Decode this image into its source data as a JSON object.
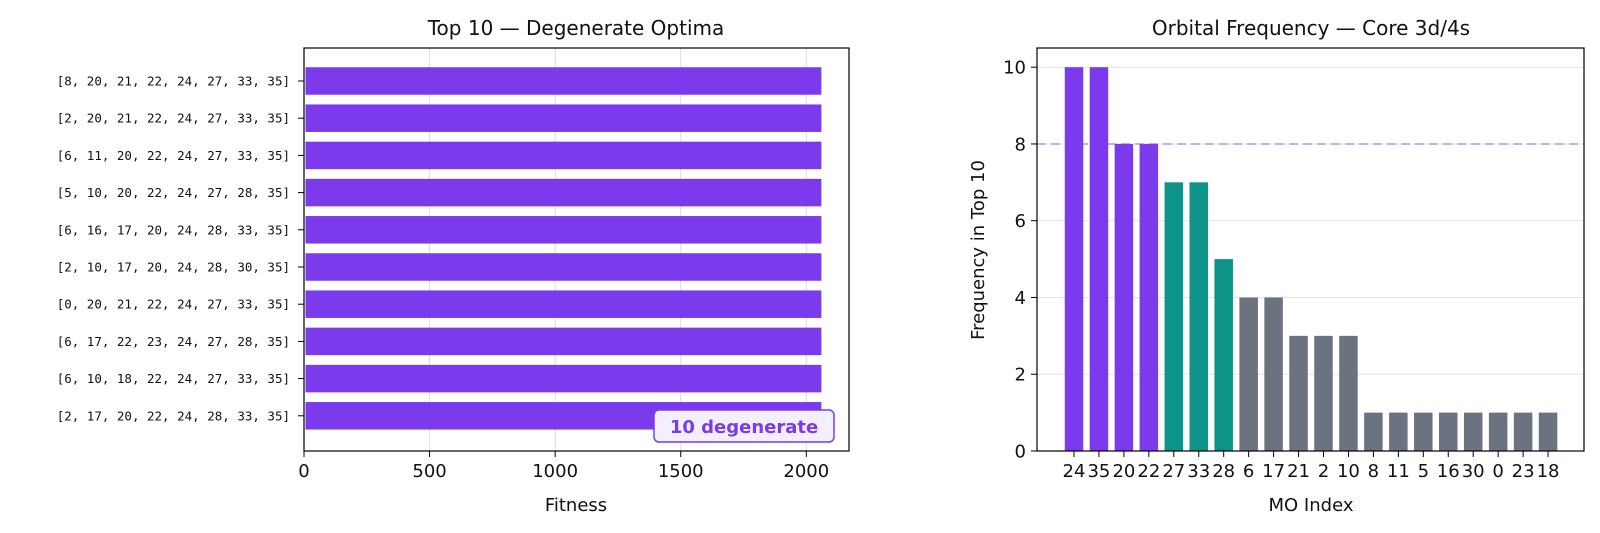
{
  "colors": {
    "purple": "#7c3aed",
    "teal": "#0d9488",
    "gray": "#6b7280",
    "dashed": "#c4b0f0",
    "badge_bg": "#f3efff"
  },
  "chart_data": [
    {
      "type": "bar",
      "orientation": "horizontal",
      "title": "Top 10 — Degenerate Optima",
      "xlabel": "Fitness",
      "ylabel": "",
      "categories": [
        "[8, 20, 21, 22, 24, 27, 33, 35]",
        "[2, 20, 21, 22, 24, 27, 33, 35]",
        "[6, 11, 20, 22, 24, 27, 33, 35]",
        "[5, 10, 20, 22, 24, 27, 28, 35]",
        "[6, 16, 17, 20, 24, 28, 33, 35]",
        "[2, 10, 17, 20, 24, 28, 30, 35]",
        "[0, 20, 21, 22, 24, 27, 33, 35]",
        "[6, 17, 22, 23, 24, 27, 28, 35]",
        "[6, 10, 18, 22, 24, 27, 33, 35]",
        "[2, 17, 20, 22, 24, 28, 33, 35]"
      ],
      "values": [
        2060,
        2060,
        2060,
        2060,
        2060,
        2060,
        2060,
        2060,
        2060,
        2060
      ],
      "xlim": [
        0,
        2170
      ],
      "xticks": [
        0,
        500,
        1000,
        1500,
        2000
      ],
      "grid": "vertical",
      "annotation": "10 degenerate"
    },
    {
      "type": "bar",
      "title": "Orbital Frequency — Core 3d/4s",
      "xlabel": "MO Index",
      "ylabel": "Frequency in Top 10",
      "categories": [
        "24",
        "35",
        "20",
        "22",
        "27",
        "33",
        "28",
        "6",
        "17",
        "21",
        "2",
        "10",
        "8",
        "11",
        "5",
        "16",
        "30",
        "0",
        "23",
        "18"
      ],
      "values": [
        10,
        10,
        8,
        8,
        7,
        7,
        5,
        4,
        4,
        3,
        3,
        3,
        1,
        1,
        1,
        1,
        1,
        1,
        1,
        1
      ],
      "bar_groups": [
        "purple",
        "purple",
        "purple",
        "purple",
        "teal",
        "teal",
        "teal",
        "gray",
        "gray",
        "gray",
        "gray",
        "gray",
        "gray",
        "gray",
        "gray",
        "gray",
        "gray",
        "gray",
        "gray",
        "gray"
      ],
      "ylim": [
        0,
        10.5
      ],
      "yticks": [
        0,
        2,
        4,
        6,
        8,
        10
      ],
      "reference_line": 8,
      "grid": "horizontal"
    }
  ]
}
